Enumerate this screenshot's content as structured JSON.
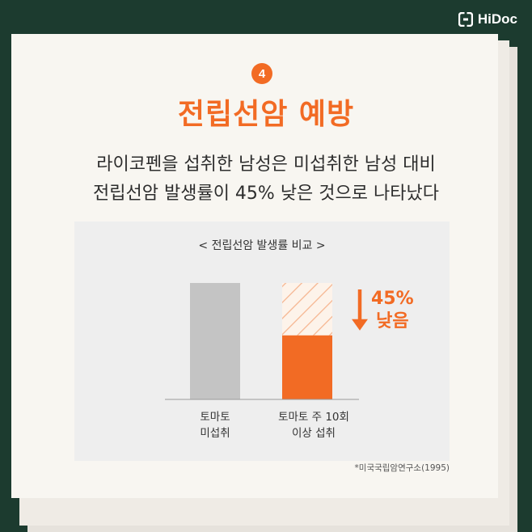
{
  "brand": {
    "name": "HiDoc"
  },
  "card": {
    "step_number": "4",
    "title": "전립선암 예방",
    "subtitle_lines": [
      "라이코펜을 섭취한 남성은 미섭취한 남성 대비",
      "전립선암 발생률이 45% 낮은 것으로 나타났다"
    ]
  },
  "chart_data": {
    "type": "bar",
    "title": "< 전립선암 발생률 비교 >",
    "categories": [
      "토마토 미섭취",
      "토마토 주 10회 이상 섭취"
    ],
    "category_lines": [
      [
        "토마토",
        "미섭취"
      ],
      [
        "토마토 주 10회",
        "이상 섭취"
      ]
    ],
    "values": [
      100,
      55
    ],
    "reduction_percent": 45,
    "reduction_label_lines": [
      "45%",
      "낮음"
    ],
    "ylim": [
      0,
      100
    ],
    "grid": false,
    "colors": {
      "control": "#c4c4c4",
      "treated": "#f26b24",
      "reduced_hatch": "#f6b48e",
      "arrow": "#f26b24"
    }
  },
  "footnote": {
    "source": "*미국국립암연구소(1995)"
  }
}
